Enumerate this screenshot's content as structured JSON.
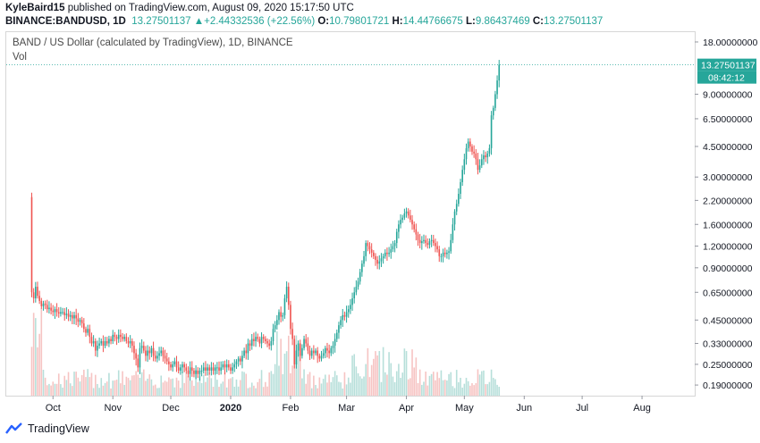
{
  "header": {
    "author": "KyleBaird15",
    "published_text": "published on TradingView.com, August 09, 2020 15:17:50 UTC",
    "symbol": "BINANCE:BANDUSD, 1D",
    "last_price": "13.27501137",
    "change": "+2.44332536 (+22.56%)",
    "o_label": "O:",
    "o_value": "10.79801721",
    "h_label": "H:",
    "h_value": "14.44766675",
    "l_label": "L:",
    "l_value": "9.86437469",
    "c_label": "C:",
    "c_value": "13.27501137"
  },
  "chart_title": "BAND / US Dollar (calculated by TradingView), 1D, BINANCE",
  "vol_label": "Vol",
  "price_tag": "13.27501137",
  "time_tag": "08:42:12",
  "footer": {
    "brand": "TradingView"
  },
  "colors": {
    "up": "#26a69a",
    "down": "#ef5350",
    "up_volume": "#b7dfda",
    "down_volume": "#f6c4c3",
    "price_tag": "#26a69a"
  },
  "chart_data": {
    "type": "candlestick",
    "yscale": "log",
    "ylim": [
      0.165,
      20.5
    ],
    "ytick_labels": [
      "18.00000000",
      "9.00000000",
      "6.50000000",
      "4.50000000",
      "3.00000000",
      "2.20000000",
      "1.60000000",
      "1.20000000",
      "0.90000000",
      "0.65000000",
      "0.45000000",
      "0.33000000",
      "0.25000000",
      "0.19000000"
    ],
    "ytick_values": [
      18,
      9,
      6.5,
      4.5,
      3,
      2.2,
      1.6,
      1.2,
      0.9,
      0.65,
      0.45,
      0.33,
      0.25,
      0.19
    ],
    "xtick_labels": [
      "Oct",
      "Nov",
      "Dec",
      "2020",
      "Feb",
      "Mar",
      "Apr",
      "May",
      "Jun",
      "Jul",
      "Aug"
    ],
    "xtick_days": [
      11,
      42,
      72,
      103,
      134,
      163,
      194,
      224,
      255,
      285,
      316
    ],
    "first_day": "2019-09-20",
    "last_day": "2020-08-09",
    "closes": [
      0.65,
      0.6,
      0.7,
      0.62,
      0.58,
      0.54,
      0.56,
      0.55,
      0.52,
      0.53,
      0.51,
      0.5,
      0.52,
      0.5,
      0.49,
      0.5,
      0.5,
      0.48,
      0.49,
      0.47,
      0.48,
      0.46,
      0.48,
      0.46,
      0.44,
      0.45,
      0.43,
      0.4,
      0.38,
      0.4,
      0.36,
      0.33,
      0.34,
      0.3,
      0.32,
      0.33,
      0.34,
      0.32,
      0.34,
      0.33,
      0.35,
      0.34,
      0.37,
      0.36,
      0.35,
      0.37,
      0.36,
      0.35,
      0.36,
      0.34,
      0.33,
      0.34,
      0.32,
      0.29,
      0.27,
      0.24,
      0.31,
      0.32,
      0.3,
      0.28,
      0.3,
      0.29,
      0.31,
      0.28,
      0.27,
      0.28,
      0.29,
      0.3,
      0.28,
      0.27,
      0.26,
      0.25,
      0.24,
      0.25,
      0.26,
      0.24,
      0.23,
      0.24,
      0.25,
      0.24,
      0.23,
      0.22,
      0.24,
      0.23,
      0.22,
      0.23,
      0.22,
      0.23,
      0.23,
      0.24,
      0.23,
      0.24,
      0.23,
      0.24,
      0.23,
      0.24,
      0.24,
      0.23,
      0.24,
      0.25,
      0.24,
      0.25,
      0.24,
      0.23,
      0.24,
      0.25,
      0.26,
      0.27,
      0.26,
      0.28,
      0.3,
      0.29,
      0.33,
      0.32,
      0.35,
      0.34,
      0.36,
      0.35,
      0.33,
      0.36,
      0.35,
      0.34,
      0.33,
      0.32,
      0.34,
      0.4,
      0.42,
      0.45,
      0.5,
      0.47,
      0.48,
      0.6,
      0.7,
      0.55,
      0.4,
      0.35,
      0.25,
      0.3,
      0.33,
      0.28,
      0.31,
      0.35,
      0.33,
      0.3,
      0.28,
      0.3,
      0.29,
      0.3,
      0.28,
      0.27,
      0.28,
      0.29,
      0.31,
      0.3,
      0.29,
      0.31,
      0.32,
      0.35,
      0.38,
      0.42,
      0.45,
      0.48,
      0.47,
      0.5,
      0.52,
      0.55,
      0.6,
      0.65,
      0.7,
      0.75,
      0.85,
      0.95,
      1.05,
      1.25,
      1.2,
      1.15,
      1.1,
      1.05,
      1.0,
      0.95,
      0.98,
      1.02,
      1.05,
      1.1,
      1.08,
      1.1,
      1.15,
      1.2,
      1.25,
      1.45,
      1.6,
      1.7,
      1.75,
      1.85,
      1.9,
      1.8,
      1.7,
      1.6,
      1.5,
      1.4,
      1.3,
      1.25,
      1.28,
      1.3,
      1.25,
      1.22,
      1.28,
      1.3,
      1.25,
      1.2,
      1.15,
      1.05,
      1.05,
      1.1,
      1.08,
      1.1,
      1.12,
      1.3,
      1.6,
      1.9,
      2.1,
      2.4,
      2.8,
      3.3,
      3.8,
      4.4,
      4.8,
      4.5,
      4.2,
      4.1,
      3.8,
      3.3,
      3.5,
      3.8,
      4.0,
      3.9,
      4.1,
      4.4,
      6.8,
      7.5,
      9.0,
      10.8,
      13.28
    ],
    "volume_note": "volume histogram drawn without a printed scale"
  }
}
